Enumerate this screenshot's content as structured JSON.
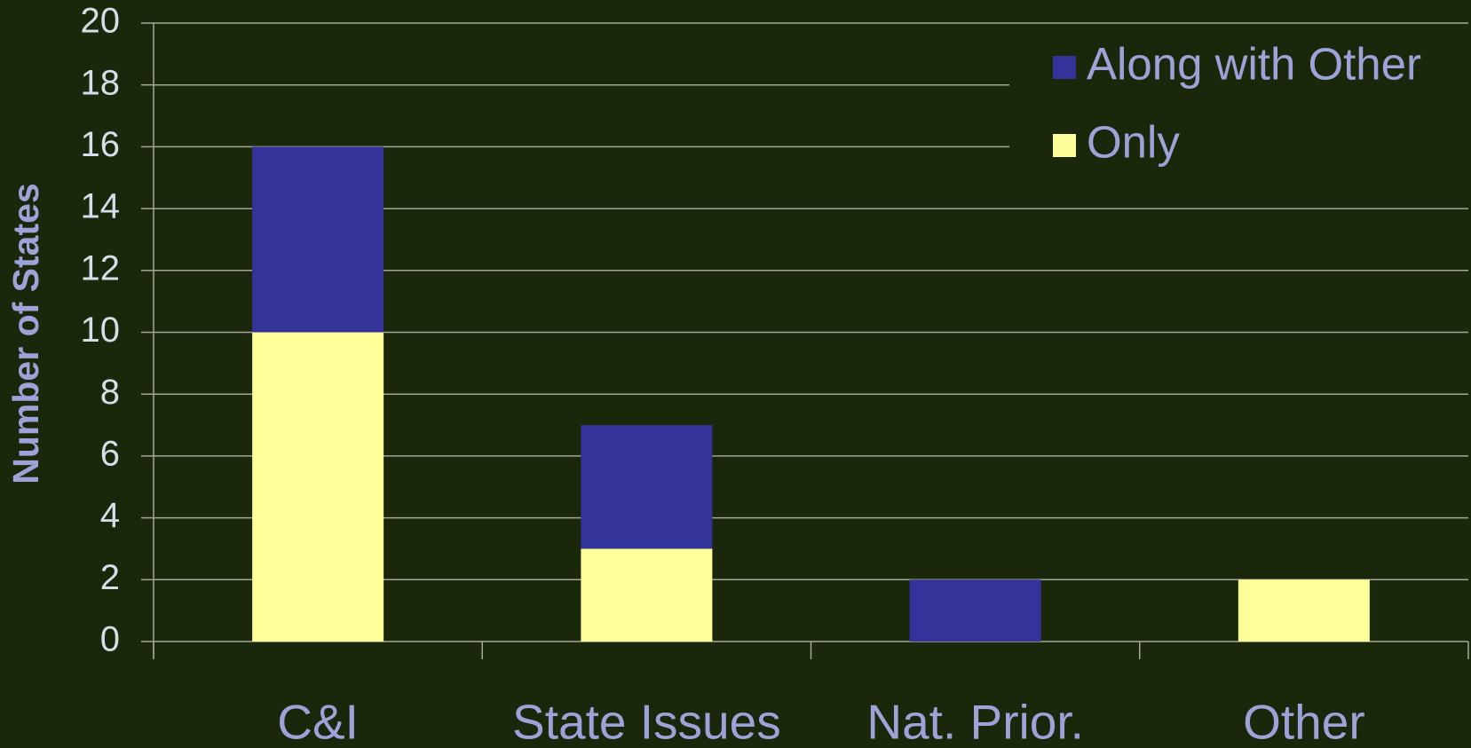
{
  "chart_data": {
    "type": "stacked_bar",
    "y_label": "Number of States",
    "categories": [
      "C&I",
      "State Issues",
      "Nat. Prior.",
      "Other"
    ],
    "series": [
      {
        "name": "Only",
        "color": "#ffff99",
        "values": [
          10,
          3,
          0,
          2
        ]
      },
      {
        "name": "Along with Other",
        "color": "#333399",
        "values": [
          6,
          4,
          2,
          0
        ]
      }
    ],
    "ylim": [
      0,
      20
    ],
    "yticks": [
      0,
      2,
      4,
      6,
      8,
      10,
      12,
      14,
      16,
      18,
      20
    ],
    "grid": true,
    "legend": "upper right"
  }
}
